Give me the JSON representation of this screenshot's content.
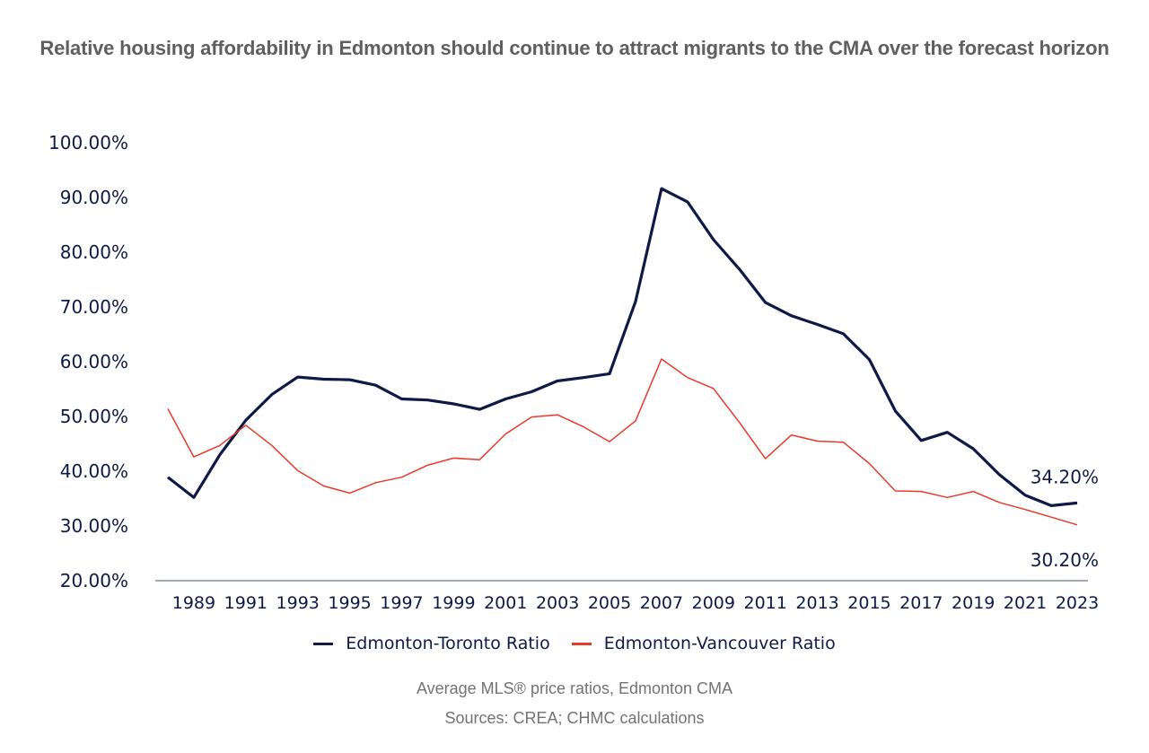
{
  "chart_data": {
    "type": "line",
    "title": "Relative housing affordability in Edmonton should continue to attract migrants to the CMA over the forecast horizon",
    "xlabel": "",
    "ylabel": "",
    "x": [
      1988,
      1989,
      1990,
      1991,
      1992,
      1993,
      1994,
      1995,
      1996,
      1997,
      1998,
      1999,
      2000,
      2001,
      2002,
      2003,
      2004,
      2005,
      2006,
      2007,
      2008,
      2009,
      2010,
      2011,
      2012,
      2013,
      2014,
      2015,
      2016,
      2017,
      2018,
      2019,
      2020,
      2021,
      2022,
      2023
    ],
    "x_tick_labels": [
      "1989",
      "1991",
      "1993",
      "1995",
      "1997",
      "1999",
      "2001",
      "2003",
      "2005",
      "2007",
      "2009",
      "2011",
      "2013",
      "2015",
      "2017",
      "2019",
      "2021",
      "2023"
    ],
    "ylim": [
      20,
      100
    ],
    "y_tick_labels": [
      "100.00%",
      "90.00%",
      "80.00%",
      "70.00%",
      "60.00%",
      "50.00%",
      "40.00%",
      "30.00%",
      "20.00%"
    ],
    "grid": false,
    "legend_position": "bottom",
    "series": [
      {
        "name": "Edmonton-Toronto Ratio",
        "color": "#0e1a45",
        "values": [
          38.9,
          35.2,
          43.0,
          49.3,
          54.0,
          57.2,
          56.8,
          56.7,
          55.7,
          53.2,
          53.0,
          52.3,
          51.3,
          53.2,
          54.5,
          56.5,
          57.1,
          57.8,
          71.0,
          91.6,
          89.2,
          82.3,
          76.9,
          70.8,
          68.4,
          66.8,
          65.1,
          60.4,
          51.0,
          45.6,
          47.1,
          44.1,
          39.4,
          35.6,
          33.7,
          34.2
        ],
        "end_label": "34.20%"
      },
      {
        "name": "Edmonton-Vancouver Ratio",
        "color": "#e8392b",
        "values": [
          51.4,
          42.6,
          44.7,
          48.4,
          44.7,
          40.1,
          37.3,
          36.0,
          37.9,
          38.9,
          41.1,
          42.4,
          42.1,
          46.8,
          49.9,
          50.3,
          48.1,
          45.4,
          49.2,
          60.5,
          57.1,
          55.1,
          48.9,
          42.3,
          46.6,
          45.5,
          45.3,
          41.4,
          36.4,
          36.3,
          35.2,
          36.3,
          34.3,
          33.0,
          31.6,
          30.2
        ],
        "end_label": "30.20%"
      }
    ],
    "annotations": [
      "34.20%",
      "30.20%"
    ]
  },
  "footer": {
    "subtitle": "Average MLS® price ratios, Edmonton CMA",
    "source": "Sources: CREA; CHMC calculations"
  },
  "colors": {
    "axis": "#a3a9bd",
    "text_dark": "#0e1a45",
    "title": "#5f5f5f",
    "footer": "#737373"
  }
}
